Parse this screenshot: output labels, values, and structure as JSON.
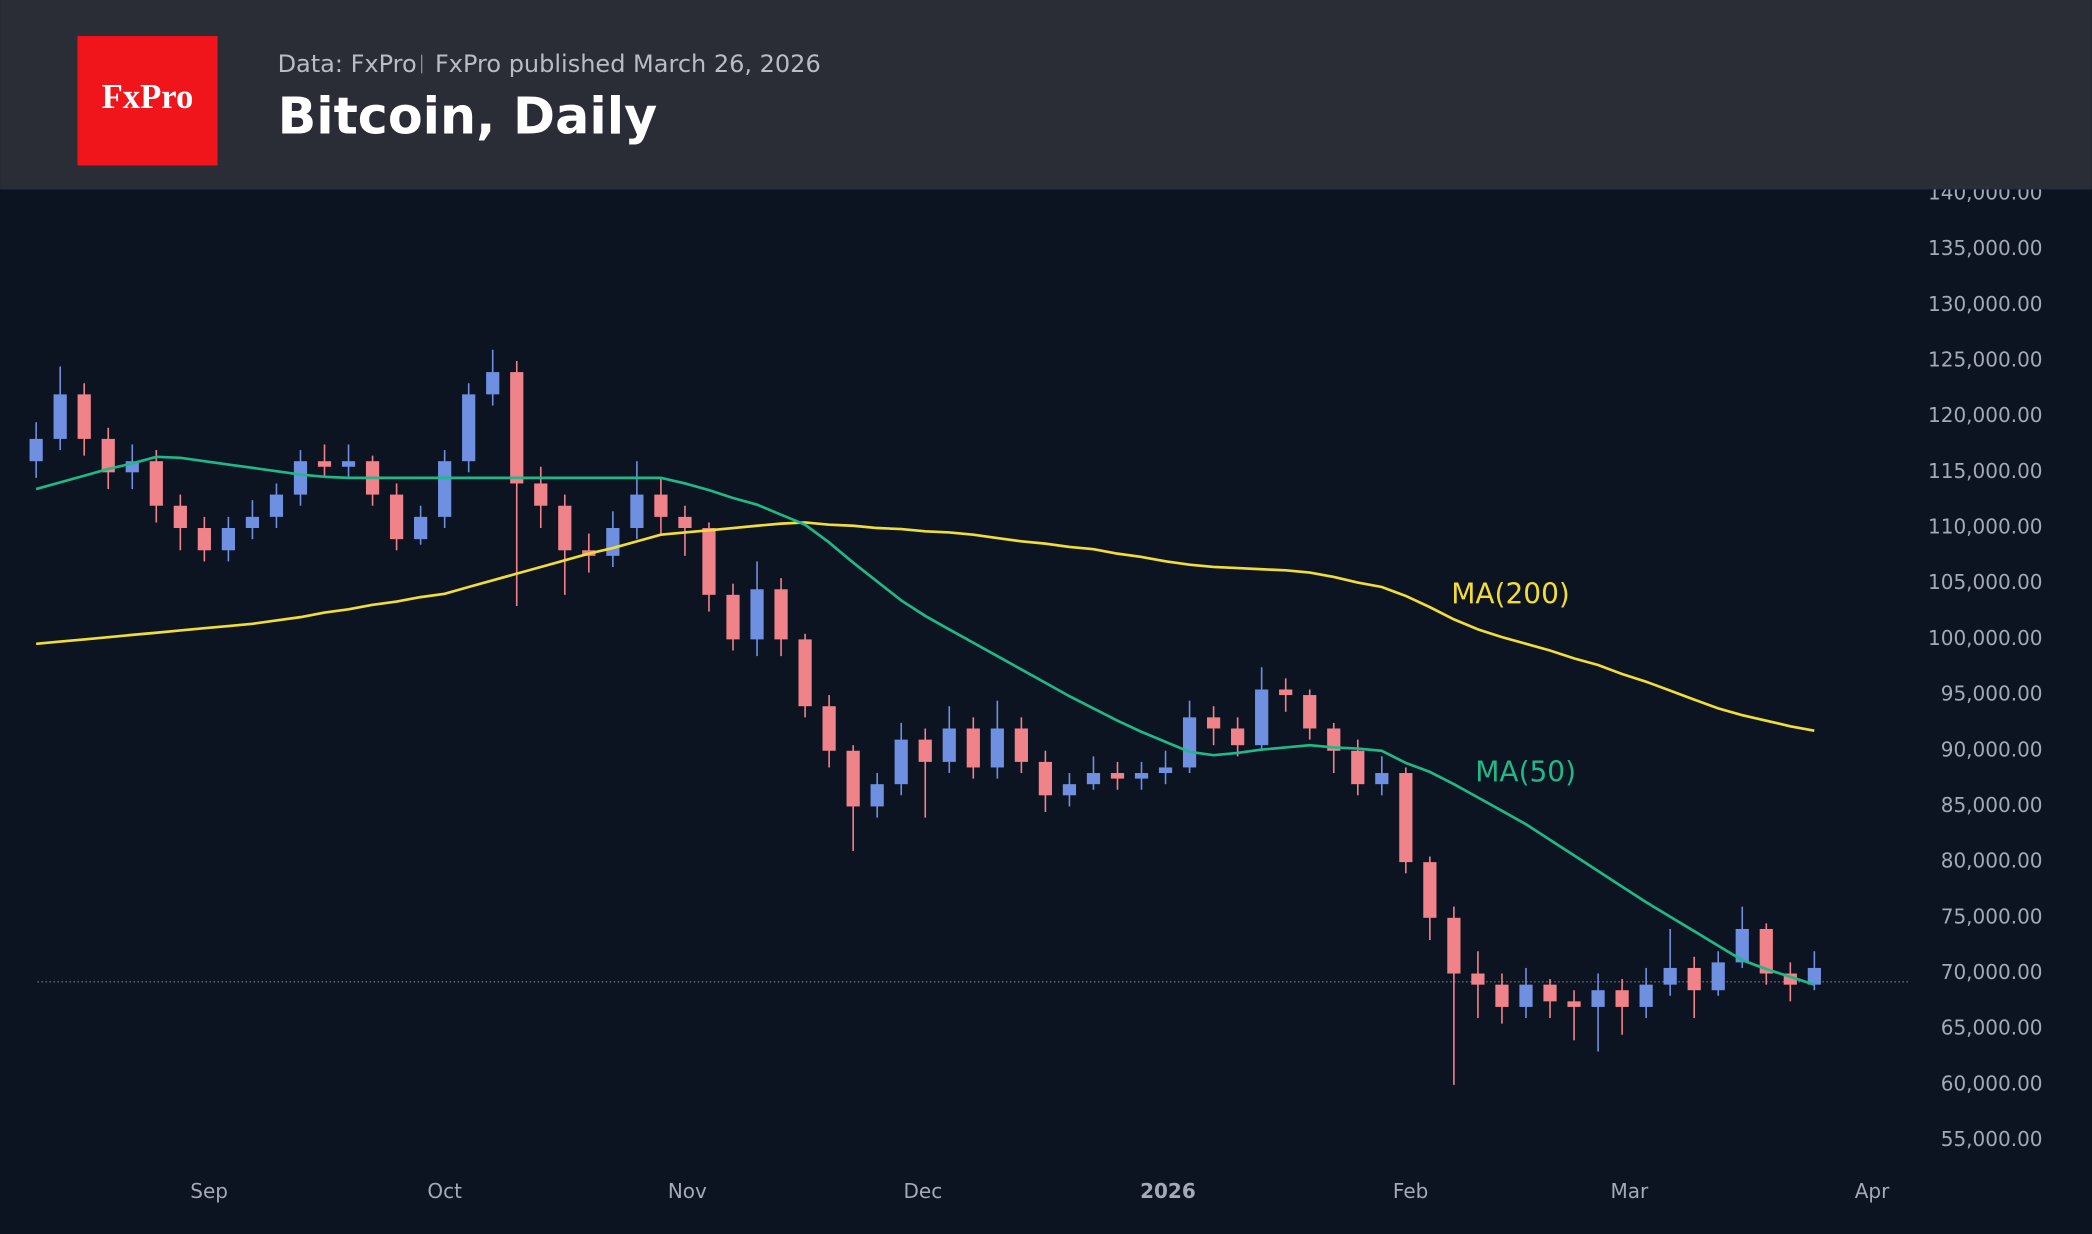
{
  "header": {
    "logo": "FxPro",
    "source": "Data: FxPro",
    "published": "FxPro published March 26, 2026"
  },
  "chart_data": {
    "type": "candlestick",
    "title": "Bitcoin, Daily",
    "up_color": "#6f8fe0",
    "down_color": "#f0828a",
    "candles": {
      "open": [
        116000,
        118000,
        122000,
        118000,
        115000,
        116000,
        112000,
        110000,
        108000,
        110000,
        111000,
        113000,
        116000,
        115500,
        116000,
        113000,
        109000,
        111000,
        116000,
        122000,
        124000,
        114000,
        112000,
        108000,
        107500,
        110000,
        113000,
        111000,
        110000,
        104000,
        100000,
        104500,
        100000,
        94000,
        90000,
        85000,
        87000,
        91000,
        89000,
        92000,
        88500,
        92000,
        89000,
        86000,
        87000,
        88000,
        87500,
        88000,
        88500,
        93000,
        92000,
        90500,
        95500,
        95000,
        92000,
        90000,
        87000,
        88000,
        80000,
        75000,
        70000,
        69000,
        67000,
        69000,
        67500,
        67000,
        68500,
        67000,
        69000,
        70500,
        68500,
        71000,
        74000,
        70000,
        69000
      ],
      "high": [
        119500,
        124500,
        123000,
        119000,
        117500,
        117000,
        113000,
        111000,
        111000,
        112500,
        114000,
        117000,
        117500,
        117500,
        116500,
        114000,
        112000,
        117000,
        123000,
        126000,
        125000,
        115500,
        113000,
        109500,
        111500,
        116000,
        114500,
        112000,
        110500,
        105000,
        107000,
        105500,
        100500,
        95000,
        90500,
        88000,
        92500,
        92000,
        94000,
        93000,
        94500,
        93000,
        90000,
        88000,
        89500,
        89000,
        89000,
        90000,
        94500,
        94000,
        93000,
        97500,
        96500,
        95500,
        92500,
        91000,
        89500,
        88500,
        80500,
        76000,
        72000,
        70000,
        70500,
        69500,
        68500,
        70000,
        69500,
        70500,
        74000,
        71500,
        72000,
        76000,
        74500,
        71000,
        72000
      ],
      "low": [
        114500,
        117000,
        116500,
        113500,
        113500,
        110500,
        108000,
        107000,
        107000,
        109000,
        110000,
        112000,
        114500,
        114500,
        112000,
        108000,
        108500,
        110000,
        115000,
        121000,
        103000,
        110000,
        104000,
        106000,
        106500,
        109000,
        109500,
        107500,
        102500,
        99000,
        98500,
        98500,
        93000,
        88500,
        81000,
        84000,
        86000,
        84000,
        88000,
        87500,
        87500,
        88000,
        84500,
        85000,
        86500,
        86500,
        86500,
        87000,
        88000,
        90500,
        89500,
        90000,
        93500,
        91000,
        88000,
        86000,
        86000,
        79000,
        73000,
        60000,
        66000,
        65500,
        66000,
        66000,
        64000,
        63000,
        64500,
        66000,
        68000,
        66000,
        68000,
        70500,
        69000,
        67500,
        68500
      ],
      "close": [
        118000,
        122000,
        118000,
        115000,
        116000,
        112000,
        110000,
        108000,
        110000,
        111000,
        113000,
        116000,
        115500,
        116000,
        113000,
        109000,
        111000,
        116000,
        122000,
        124000,
        114000,
        112000,
        108000,
        107500,
        110000,
        113000,
        111000,
        110000,
        104000,
        100000,
        104500,
        100000,
        94000,
        90000,
        85000,
        87000,
        91000,
        89000,
        92000,
        88500,
        92000,
        89000,
        86000,
        87000,
        88000,
        87500,
        88000,
        88500,
        93000,
        92000,
        90500,
        95500,
        95000,
        92000,
        90000,
        87000,
        88000,
        80000,
        75000,
        70000,
        69000,
        67000,
        69000,
        67500,
        67000,
        68500,
        67000,
        69000,
        70500,
        68500,
        71000,
        74000,
        70000,
        69000,
        70500
      ]
    },
    "series": [
      {
        "name": "MA(200)",
        "color": "#f2dc3a",
        "values": [
          99600,
          99800,
          100000,
          100200,
          100400,
          100600,
          100800,
          101000,
          101200,
          101400,
          101700,
          102000,
          102400,
          102700,
          103100,
          103400,
          103800,
          104100,
          104700,
          105300,
          105900,
          106500,
          107100,
          107700,
          108200,
          108800,
          109400,
          109600,
          109800,
          110000,
          110200,
          110400,
          110500,
          110300,
          110200,
          110000,
          109900,
          109700,
          109600,
          109400,
          109100,
          108800,
          108600,
          108300,
          108100,
          107700,
          107400,
          107000,
          106700,
          106500,
          106400,
          106300,
          106200,
          106000,
          105600,
          105100,
          104700,
          103900,
          102900,
          101800,
          100900,
          100200,
          99600,
          99000,
          98300,
          97700,
          96900,
          96200,
          95400,
          94600,
          93800,
          93200,
          92700,
          92200,
          91800
        ]
      },
      {
        "name": "MA(50)",
        "color": "#1fb888",
        "values": [
          113500,
          114100,
          114700,
          115300,
          115800,
          116400,
          116300,
          116000,
          115700,
          115400,
          115100,
          114800,
          114600,
          114500,
          114500,
          114500,
          114500,
          114500,
          114500,
          114500,
          114500,
          114500,
          114500,
          114500,
          114500,
          114500,
          114500,
          114000,
          113400,
          112700,
          112100,
          111200,
          110300,
          108700,
          106900,
          105200,
          103500,
          102100,
          100900,
          99700,
          98500,
          97300,
          96100,
          94900,
          93800,
          92700,
          91700,
          90800,
          89900,
          89600,
          89800,
          90100,
          90300,
          90500,
          90300,
          90200,
          90000,
          88900,
          88100,
          87000,
          85800,
          84600,
          83400,
          82000,
          80600,
          79200,
          77800,
          76400,
          75100,
          73800,
          72500,
          71200,
          70400,
          69700,
          69000
        ]
      }
    ],
    "price_line": 69250,
    "xlim": [
      -1.5,
      78
    ],
    "xticks": [
      {
        "value": 7.2,
        "label": "Sep"
      },
      {
        "value": 17,
        "label": "Oct"
      },
      {
        "value": 27.1,
        "label": "Nov"
      },
      {
        "value": 36.9,
        "label": "Dec"
      },
      {
        "value": 47.1,
        "label": "2026"
      },
      {
        "value": 57.2,
        "label": "Feb"
      },
      {
        "value": 66.3,
        "label": "Mar"
      },
      {
        "value": 76.4,
        "label": "Apr"
      }
    ],
    "ylim": [
      52600,
      140400
    ],
    "yticks": [
      {
        "value": 55000,
        "label": "55,000.00"
      },
      {
        "value": 60000,
        "label": "60,000.00"
      },
      {
        "value": 65000,
        "label": "65,000.00"
      },
      {
        "value": 70000,
        "label": "70,000.00"
      },
      {
        "value": 75000,
        "label": "75,000.00"
      },
      {
        "value": 80000,
        "label": "80,000.00"
      },
      {
        "value": 85000,
        "label": "85,000.00"
      },
      {
        "value": 90000,
        "label": "90,000.00"
      },
      {
        "value": 95000,
        "label": "95,000.00"
      },
      {
        "value": 100000,
        "label": "100,000.00"
      },
      {
        "value": 105000,
        "label": "105,000.00"
      },
      {
        "value": 110000,
        "label": "110,000.00"
      },
      {
        "value": 115000,
        "label": "115,000.00"
      },
      {
        "value": 120000,
        "label": "120,000.00"
      },
      {
        "value": 125000,
        "label": "125,000.00"
      },
      {
        "value": 130000,
        "label": "130,000.00"
      },
      {
        "value": 135000,
        "label": "135,000.00"
      },
      {
        "value": 140000,
        "label": "140,000.00"
      }
    ]
  }
}
